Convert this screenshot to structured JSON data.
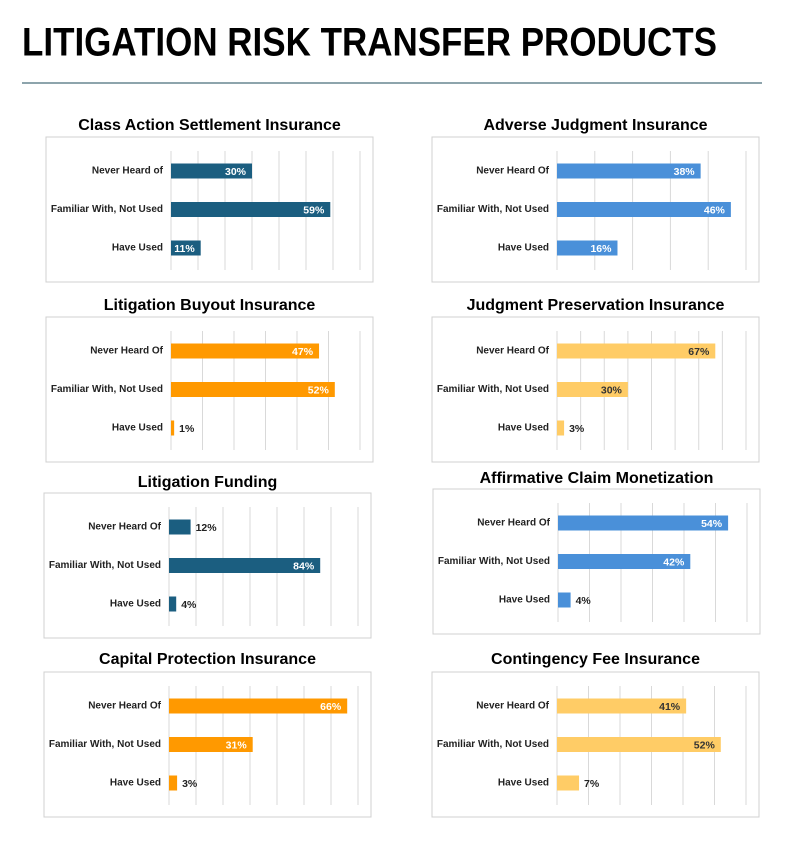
{
  "title": "LITIGATION RISK TRANSFER PRODUCTS",
  "chart_data": [
    {
      "type": "bar",
      "title": "Class Action Settlement Insurance",
      "categories": [
        "Never Heard of",
        "Familiar With, Not Used",
        "Have Used"
      ],
      "values": [
        30,
        59,
        11
      ],
      "value_labels": [
        "30%",
        "59%",
        "11%"
      ],
      "color": "#1b5e80",
      "xlim": [
        0,
        70
      ],
      "xticks": [
        0,
        10,
        20,
        30,
        40,
        50,
        60,
        70
      ],
      "grid": true
    },
    {
      "type": "bar",
      "title": "Adverse Judgment Insurance",
      "categories": [
        "Never Heard Of",
        "Familiar With, Not Used",
        "Have Used"
      ],
      "values": [
        38,
        46,
        16
      ],
      "value_labels": [
        "38%",
        "46%",
        "16%"
      ],
      "color": "#4a90d9",
      "xlim": [
        0,
        50
      ],
      "xticks": [
        0,
        10,
        20,
        30,
        40,
        50
      ],
      "grid": true
    },
    {
      "type": "bar",
      "title": "Litigation Buyout Insurance",
      "categories": [
        "Never Heard Of",
        "Familiar With, Not Used",
        "Have Used"
      ],
      "values": [
        47,
        52,
        1
      ],
      "value_labels": [
        "47%",
        "52%",
        "1%"
      ],
      "color": "#ff9900",
      "xlim": [
        0,
        60
      ],
      "xticks": [
        0,
        10,
        20,
        30,
        40,
        50,
        60
      ],
      "grid": true
    },
    {
      "type": "bar",
      "title": "Judgment Preservation Insurance",
      "categories": [
        "Never Heard Of",
        "Familiar With, Not Used",
        "Have Used"
      ],
      "values": [
        67,
        30,
        3
      ],
      "value_labels": [
        "67%",
        "30%",
        "3%"
      ],
      "color": "#ffcc66",
      "xlim": [
        0,
        80
      ],
      "xticks": [
        0,
        10,
        20,
        30,
        40,
        50,
        60,
        70,
        80
      ],
      "grid": true
    },
    {
      "type": "bar",
      "title": "Litigation Funding",
      "categories": [
        "Never Heard Of",
        "Familiar With, Not Used",
        "Have Used"
      ],
      "values": [
        12,
        84,
        4
      ],
      "value_labels": [
        "12%",
        "84%",
        "4%"
      ],
      "color": "#1b5e80",
      "xlim": [
        0,
        105
      ],
      "xticks": [
        0,
        15,
        30,
        45,
        60,
        75,
        90,
        105
      ],
      "grid": true
    },
    {
      "type": "bar",
      "title": "Affirmative Claim Monetization",
      "categories": [
        "Never Heard Of",
        "Familiar With, Not Used",
        "Have Used"
      ],
      "values": [
        54,
        42,
        4
      ],
      "value_labels": [
        "54%",
        "42%",
        "4%"
      ],
      "color": "#4a90d9",
      "xlim": [
        0,
        60
      ],
      "xticks": [
        0,
        10,
        20,
        30,
        40,
        50,
        60
      ],
      "grid": true
    },
    {
      "type": "bar",
      "title": "Capital Protection Insurance",
      "categories": [
        "Never Heard Of",
        "Familiar With, Not Used",
        "Have Used"
      ],
      "values": [
        66,
        31,
        3
      ],
      "value_labels": [
        "66%",
        "31%",
        "3%"
      ],
      "color": "#ff9900",
      "xlim": [
        0,
        70
      ],
      "xticks": [
        0,
        10,
        20,
        30,
        40,
        50,
        60,
        70
      ],
      "grid": true
    },
    {
      "type": "bar",
      "title": "Contingency Fee Insurance",
      "categories": [
        "Never Heard Of",
        "Familiar With, Not Used",
        "Have Used"
      ],
      "values": [
        41,
        52,
        7
      ],
      "value_labels": [
        "41%",
        "52%",
        "7%"
      ],
      "color": "#ffcc66",
      "xlim": [
        0,
        60
      ],
      "xticks": [
        0,
        10,
        20,
        30,
        40,
        50,
        60
      ],
      "grid": true
    }
  ]
}
